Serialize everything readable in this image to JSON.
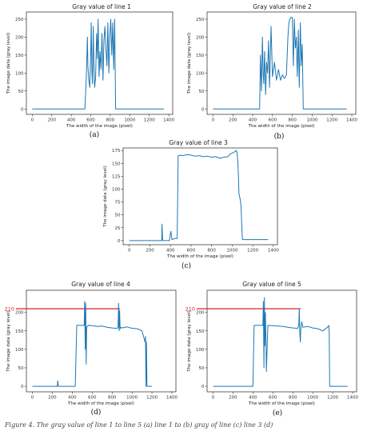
{
  "colors": {
    "line": "#1f77b4",
    "ref_line": "#d62728",
    "axis": "#000000"
  },
  "chart_data": [
    {
      "type": "line",
      "title": "Gray value of line 1",
      "xlabel": "The width of the image (pixel)",
      "ylabel": "The image data (gray level)",
      "xlim": [
        -60,
        1440
      ],
      "ylim": [
        -15,
        270
      ],
      "xticks": [
        0,
        200,
        400,
        600,
        800,
        1000,
        1200,
        1400
      ],
      "yticks": [
        0,
        50,
        100,
        150,
        200,
        250
      ],
      "caption": "(a)",
      "series": [
        {
          "x": [
            0,
            540,
            555,
            565,
            570,
            580,
            590,
            600,
            605,
            612,
            618,
            625,
            632,
            640,
            650,
            660,
            668,
            675,
            685,
            695,
            705,
            715,
            725,
            735,
            745,
            755,
            765,
            775,
            785,
            795,
            805,
            815,
            825,
            835,
            845,
            855,
            1350
          ],
          "y": [
            0,
            0,
            90,
            200,
            120,
            80,
            60,
            160,
            240,
            100,
            70,
            230,
            130,
            60,
            90,
            210,
            140,
            250,
            90,
            160,
            110,
            210,
            80,
            190,
            230,
            170,
            120,
            240,
            100,
            200,
            250,
            150,
            240,
            110,
            250,
            0,
            0
          ]
        }
      ]
    },
    {
      "type": "line",
      "title": "Gray value of line 2",
      "xlabel": "The width of the image (pixel)",
      "ylabel": "The image data (gray level)",
      "xlim": [
        -60,
        1440
      ],
      "ylim": [
        -15,
        270
      ],
      "xticks": [
        0,
        200,
        400,
        600,
        800,
        1000,
        1200,
        1400
      ],
      "yticks": [
        0,
        50,
        100,
        150,
        200,
        250
      ],
      "caption": "(b)",
      "series": [
        {
          "x": [
            0,
            470,
            478,
            488,
            498,
            505,
            512,
            520,
            530,
            540,
            550,
            560,
            570,
            585,
            600,
            620,
            640,
            660,
            680,
            700,
            720,
            740,
            755,
            765,
            775,
            785,
            800,
            810,
            820,
            830,
            840,
            850,
            860,
            870,
            880,
            890,
            900,
            910,
            1350
          ],
          "y": [
            0,
            0,
            150,
            50,
            200,
            100,
            70,
            160,
            40,
            130,
            100,
            190,
            60,
            230,
            90,
            130,
            80,
            110,
            80,
            95,
            85,
            95,
            200,
            240,
            250,
            255,
            255,
            120,
            250,
            170,
            200,
            90,
            220,
            60,
            240,
            120,
            180,
            0,
            0
          ]
        }
      ]
    },
    {
      "type": "line",
      "title": "Gray value of line 3",
      "xlabel": "The width of the image (pixel)",
      "ylabel": "The image data (gray level)",
      "xlim": [
        -60,
        1440
      ],
      "ylim": [
        -8,
        180
      ],
      "xticks": [
        0,
        200,
        400,
        600,
        800,
        1000,
        1200,
        1400
      ],
      "yticks": [
        0,
        25,
        50,
        75,
        100,
        125,
        150,
        175
      ],
      "caption": "(c)",
      "series": [
        {
          "x": [
            0,
            315,
            318,
            322,
            325,
            390,
            400,
            405,
            410,
            415,
            440,
            465,
            475,
            500,
            520,
            560,
            600,
            640,
            680,
            720,
            760,
            800,
            840,
            880,
            920,
            960,
            980,
            1000,
            1020,
            1040,
            1048,
            1055,
            1060,
            1066,
            1072,
            1078,
            1085,
            1090,
            1095,
            1100,
            1130,
            1350
          ],
          "y": [
            0,
            0,
            32,
            8,
            0,
            0,
            14,
            18,
            8,
            2,
            4,
            4,
            165,
            166,
            165,
            167,
            166,
            164,
            165,
            163,
            164,
            162,
            163,
            160,
            162,
            163,
            168,
            170,
            172,
            175,
            170,
            150,
            130,
            90,
            85,
            80,
            70,
            45,
            20,
            2,
            2,
            2
          ]
        }
      ]
    },
    {
      "type": "line",
      "title": "Gray value of line 4",
      "xlabel": "The width of the image (pixel)",
      "ylabel": "The image data (gray level)",
      "xlim": [
        -60,
        1440
      ],
      "ylim": [
        -15,
        260
      ],
      "xticks": [
        0,
        200,
        400,
        600,
        800,
        1000,
        1200,
        1400
      ],
      "yticks": [
        0,
        50,
        100,
        150,
        200
      ],
      "ref_value": 210,
      "ref_label": "210",
      "ref_xrange": [
        -60,
        880
      ],
      "caption": "(d)",
      "series": [
        {
          "x": [
            0,
            250,
            255,
            260,
            430,
            445,
            520,
            525,
            530,
            535,
            540,
            545,
            560,
            600,
            650,
            700,
            750,
            800,
            850,
            860,
            865,
            870,
            875,
            880,
            885,
            900,
            950,
            1000,
            1050,
            1100,
            1130,
            1135,
            1140,
            1145,
            1150,
            1200
          ],
          "y": [
            0,
            0,
            15,
            0,
            0,
            165,
            165,
            230,
            100,
            225,
            60,
            160,
            165,
            164,
            162,
            163,
            160,
            158,
            157,
            160,
            225,
            150,
            205,
            155,
            160,
            158,
            161,
            157,
            156,
            150,
            120,
            135,
            0,
            120,
            0,
            0
          ]
        }
      ]
    },
    {
      "type": "line",
      "title": "Gray value of line 5",
      "xlabel": "The width of the image (pixel)",
      "ylabel": "The image data (gray level)",
      "xlim": [
        -60,
        1440
      ],
      "ylim": [
        -15,
        260
      ],
      "xticks": [
        0,
        200,
        400,
        600,
        800,
        1000,
        1200,
        1400
      ],
      "yticks": [
        0,
        50,
        100,
        150,
        200
      ],
      "ref_value": 210,
      "ref_label": "210",
      "ref_xrange": [
        -60,
        880
      ],
      "caption": "(e)",
      "series": [
        {
          "x": [
            0,
            400,
            412,
            500,
            505,
            510,
            515,
            520,
            525,
            530,
            535,
            550,
            600,
            650,
            700,
            750,
            800,
            850,
            860,
            865,
            870,
            875,
            880,
            885,
            890,
            900,
            950,
            1000,
            1050,
            1100,
            1150,
            1160,
            1165,
            1170,
            1175,
            1200,
            1350
          ],
          "y": [
            0,
            0,
            165,
            165,
            230,
            50,
            240,
            110,
            200,
            130,
            40,
            165,
            164,
            163,
            162,
            160,
            158,
            157,
            165,
            210,
            150,
            120,
            155,
            165,
            175,
            160,
            162,
            158,
            156,
            150,
            160,
            165,
            150,
            0,
            0,
            0,
            0
          ]
        }
      ]
    }
  ],
  "footer_text": "Figure 4. The gray value of line 1 to line 5 (a) line 1 to (b) gray of line (c) line 3 (d)"
}
